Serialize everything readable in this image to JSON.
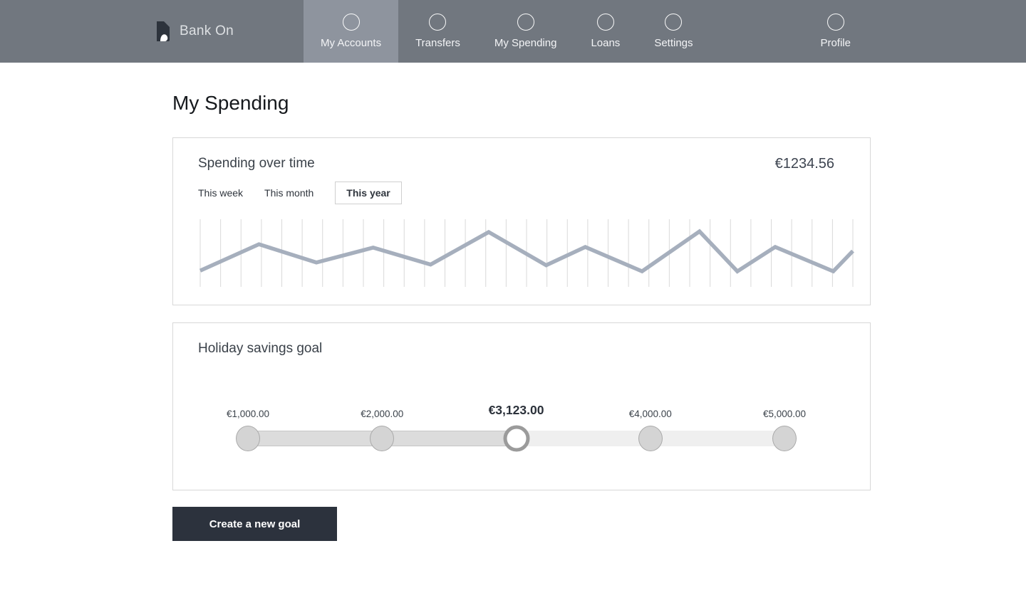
{
  "nav": {
    "brand": "Bank On",
    "items": [
      {
        "label": "My Accounts",
        "active": true
      },
      {
        "label": "Transfers",
        "active": false
      },
      {
        "label": "My Spending",
        "active": false
      },
      {
        "label": "Loans",
        "active": false
      },
      {
        "label": "Settings",
        "active": false
      },
      {
        "label": "Profile",
        "active": false
      }
    ]
  },
  "page": {
    "title": "My Spending"
  },
  "spending_card": {
    "title": "Spending over time",
    "amount": "€1234.56",
    "tabs": [
      {
        "label": "This week",
        "selected": false
      },
      {
        "label": "This month",
        "selected": false
      },
      {
        "label": "This year",
        "selected": true
      }
    ]
  },
  "chart_data": {
    "type": "line",
    "title": "Spending over time",
    "x_pct": [
      0,
      9,
      17.8,
      26.5,
      35.3,
      44.2,
      53,
      59,
      67.7,
      76.5,
      82.3,
      88.1,
      97,
      100
    ],
    "values": [
      24,
      63,
      36,
      58,
      33,
      81,
      32,
      59,
      23,
      82,
      23,
      59,
      23,
      53
    ],
    "ylim": [
      0,
      100
    ],
    "gridlines": 33,
    "grid_orientation": "vertical",
    "xlabel": "",
    "ylabel": "",
    "legend": "none",
    "line_color": "#a6afbd",
    "grid_color": "#d9d9d9",
    "note": "no axis tick labels visible; values normalized 0-100 from line height"
  },
  "goal_card": {
    "title": "Holiday savings goal",
    "current_value": "€3,123.00",
    "ticks": [
      {
        "label": "€1,000.00",
        "pct": 0,
        "current": false
      },
      {
        "label": "€2,000.00",
        "pct": 25,
        "current": false
      },
      {
        "label": "€3,123.00",
        "pct": 50,
        "current": true
      },
      {
        "label": "€4,000.00",
        "pct": 75,
        "current": false
      },
      {
        "label": "€5,000.00",
        "pct": 100,
        "current": false
      }
    ]
  },
  "actions": {
    "create_goal": "Create a new goal"
  },
  "colors": {
    "nav_bg": "#71777f",
    "nav_active_bg": "#8e949e",
    "line": "#a6afbd",
    "grid": "#d9d9d9",
    "button_bg": "#2c323d",
    "track_filled": "#dcdcdc",
    "track_empty": "#efefef",
    "logo_dark": "#2d333c"
  }
}
